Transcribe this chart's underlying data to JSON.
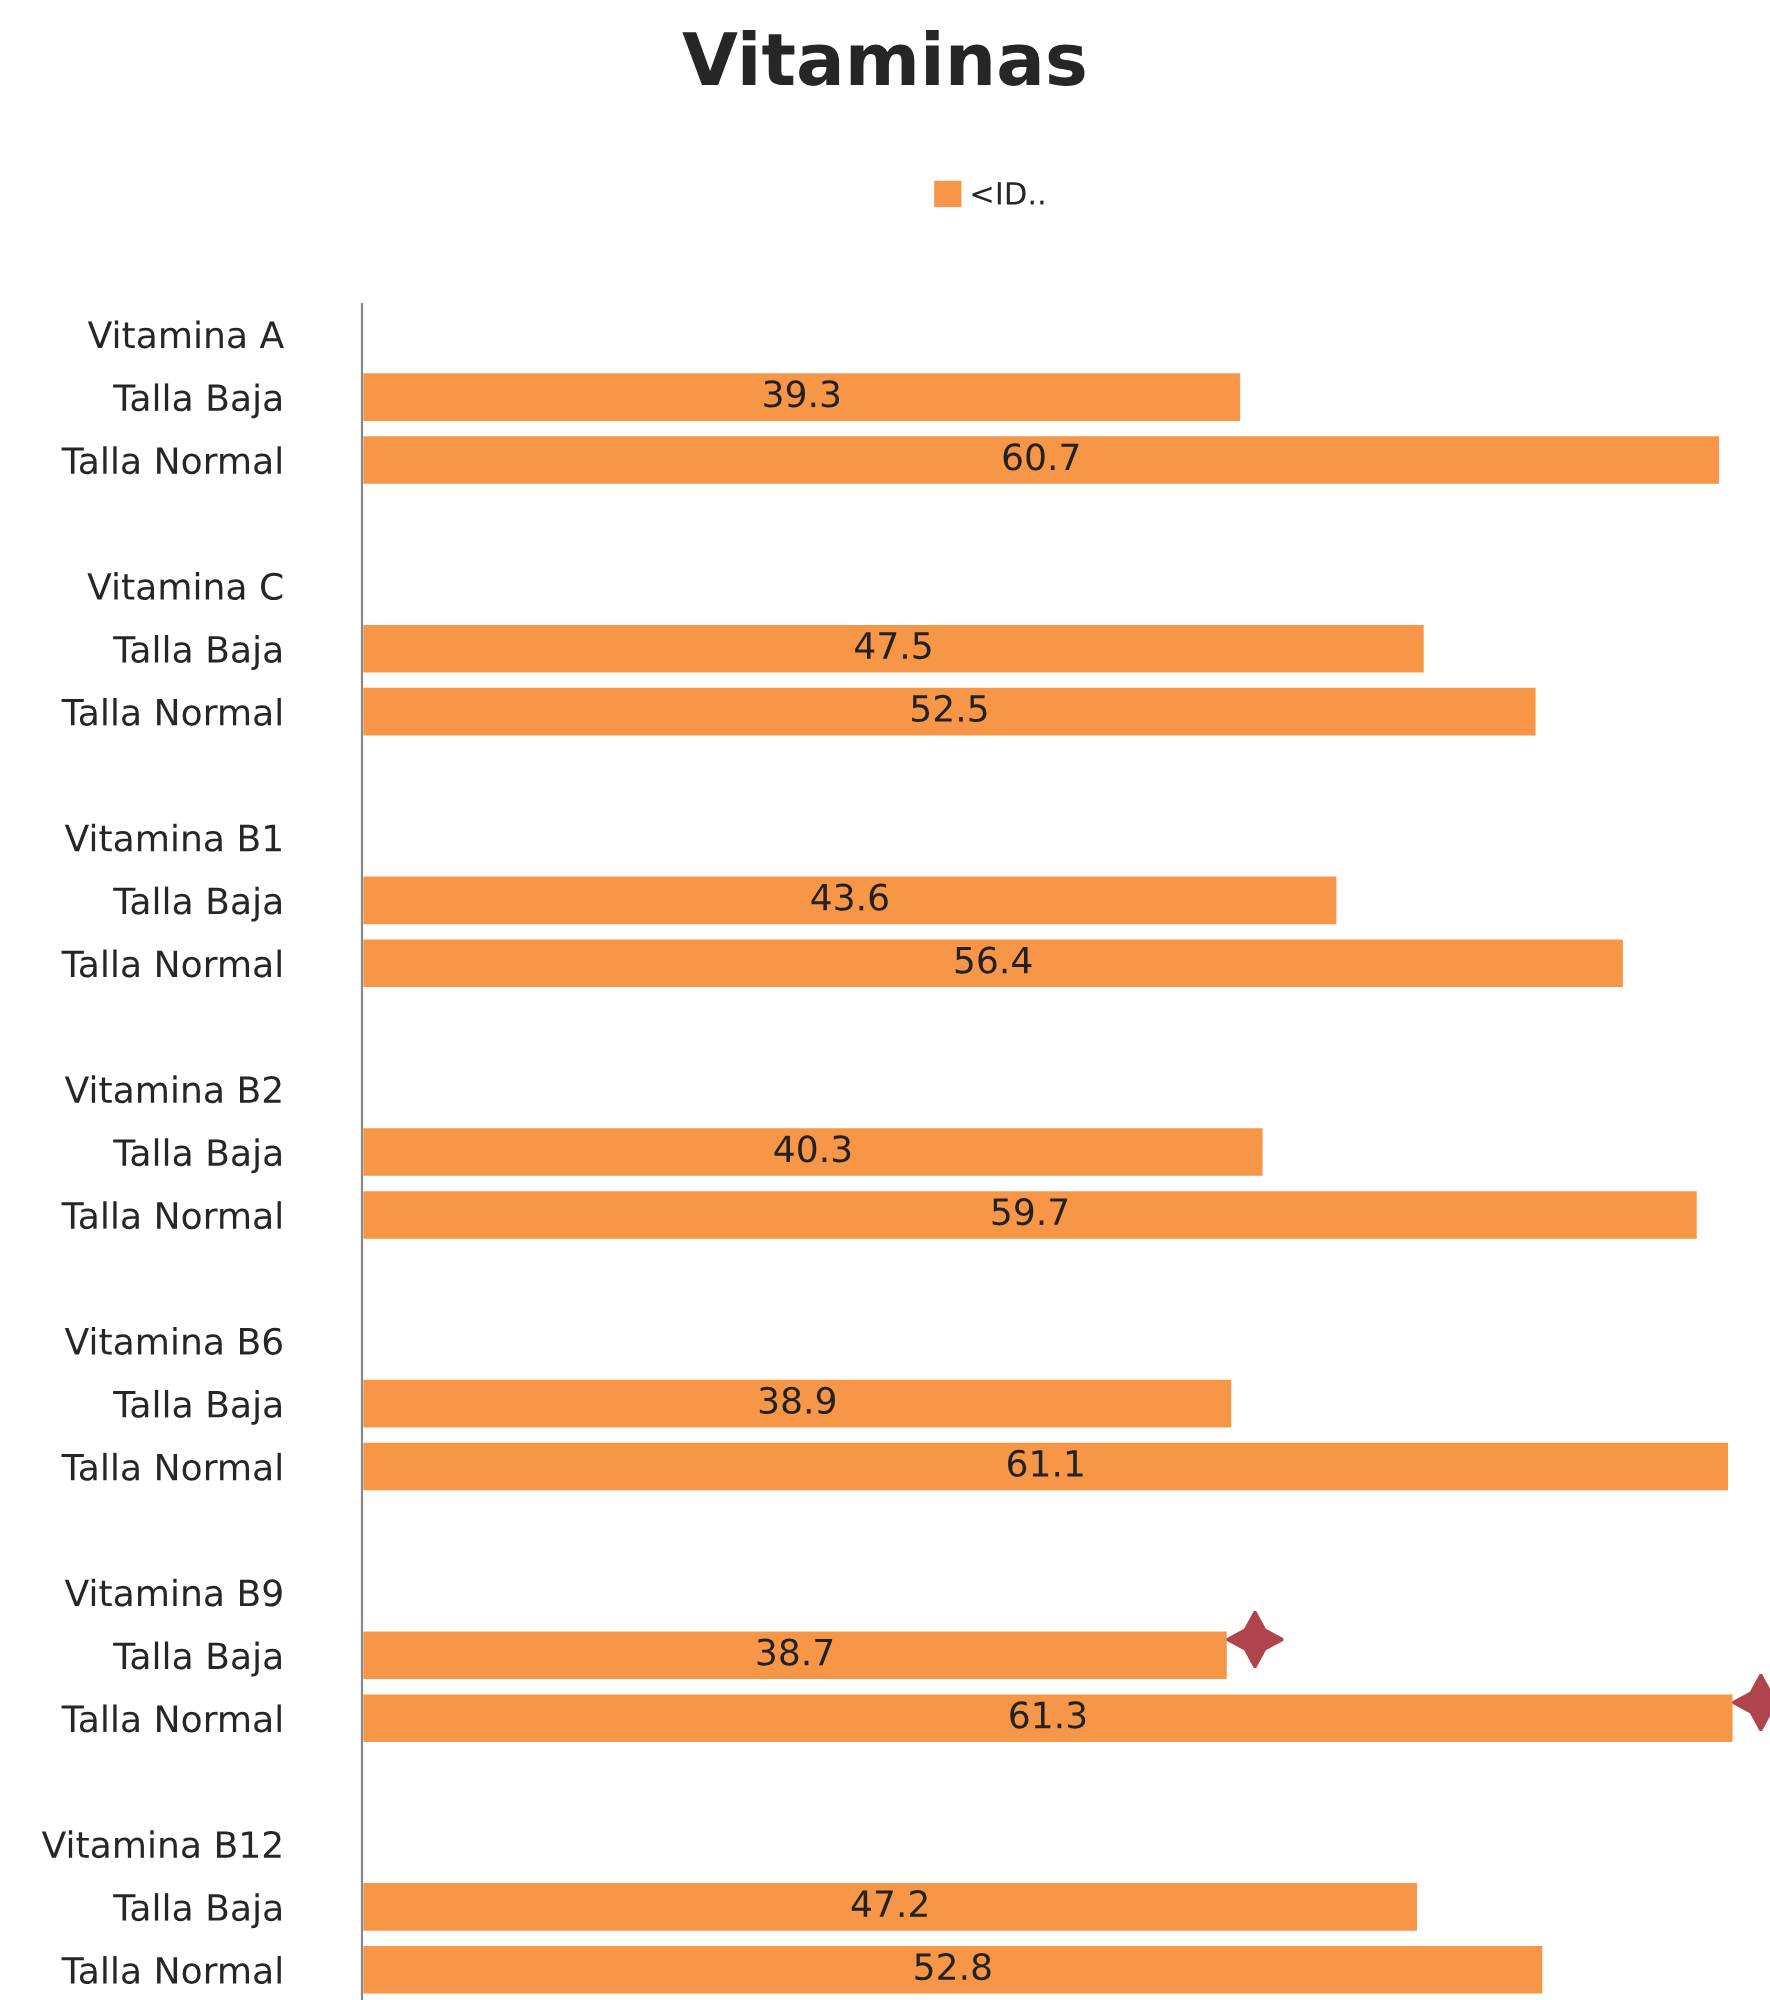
{
  "chart_data": {
    "type": "bar",
    "orientation": "horizontal",
    "title": "Vitaminas",
    "categories": [
      "Vitamina A",
      "Talla Baja",
      "Talla Normal",
      null,
      "Vitamina C",
      "Talla Baja",
      "Talla Normal",
      null,
      "Vitamina B1",
      "Talla Baja",
      "Talla Normal",
      null,
      "Vitamina B2",
      "Talla Baja",
      "Talla Normal",
      null,
      "Vitamina B6",
      "Talla Baja",
      "Talla Normal",
      null,
      "Vitamina B9",
      "Talla Baja",
      "Talla Normal",
      null,
      "Vitamina B12",
      "Talla Baja",
      "Talla Normal"
    ],
    "series": [
      {
        "name": "<ID..",
        "color": "#f79646",
        "values": [
          null,
          39.3,
          60.7,
          null,
          null,
          47.5,
          52.5,
          null,
          null,
          43.6,
          56.4,
          null,
          null,
          40.3,
          59.7,
          null,
          null,
          38.9,
          61.1,
          null,
          null,
          38.7,
          61.3,
          null,
          null,
          47.2,
          52.8
        ]
      }
    ],
    "data_labels": true,
    "legend": "top",
    "grid": false
  }
}
